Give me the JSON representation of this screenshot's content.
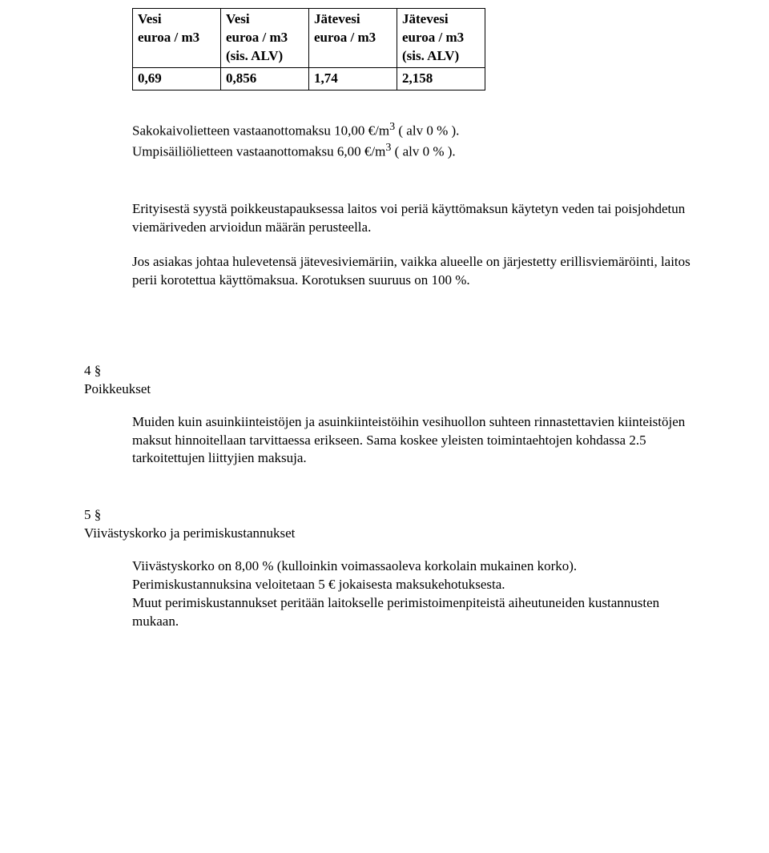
{
  "table": {
    "headers": [
      "Vesi\neuroa / m3",
      "Vesi\neuroa / m3\n(sis. ALV)",
      "Jätevesi\neuroa / m3",
      "Jätevesi\neuroa / m3\n(sis. ALV)"
    ],
    "values": [
      "0,69",
      "0,856",
      "1,74",
      "2,158"
    ]
  },
  "fee_lines": {
    "sako": "Sakokaivolietteen vastaanottomaksu 10,00 €/m",
    "sako_exp": "3",
    "sako_tail": " ( alv 0 % ).",
    "umpi": "Umpisäiliölietteen vastaanottomaksu  6,00 €/m",
    "umpi_exp": "3",
    "umpi_tail": " ( alv 0 % )."
  },
  "para1": "Erityisestä syystä poikkeustapauksessa laitos voi periä käyttömaksun käytetyn veden tai poisjohdetun viemäriveden arvioidun määrän perusteella.",
  "para2": "Jos asiakas johtaa hulevetensä jätevesiviemäriin, vaikka alueelle on järjestetty erillisviemäröinti, laitos perii korotettua käyttömaksua. Korotuksen suuruus on 100 %.",
  "section4": {
    "num": "4 §",
    "title": "Poikkeukset",
    "body": "Muiden kuin asuinkiinteistöjen ja asuinkiinteistöihin vesihuollon suhteen rinnastettavien kiinteistöjen maksut hinnoitellaan tarvittaessa erikseen. Sama koskee yleisten toimintaehtojen kohdassa 2.5 tarkoitettujen liittyjien maksuja."
  },
  "section5": {
    "num": "5 §",
    "title": "Viivästyskorko ja perimiskustannukset",
    "body1": "Viivästyskorko on 8,00 % (kulloinkin voimassaoleva korkolain mukainen korko).",
    "body2": "Perimiskustannuksina veloitetaan 5 € jokaisesta maksukehotuksesta.",
    "body3": "Muut perimiskustannukset peritään laitokselle perimistoimenpiteistä aiheutuneiden kustannusten mukaan."
  }
}
